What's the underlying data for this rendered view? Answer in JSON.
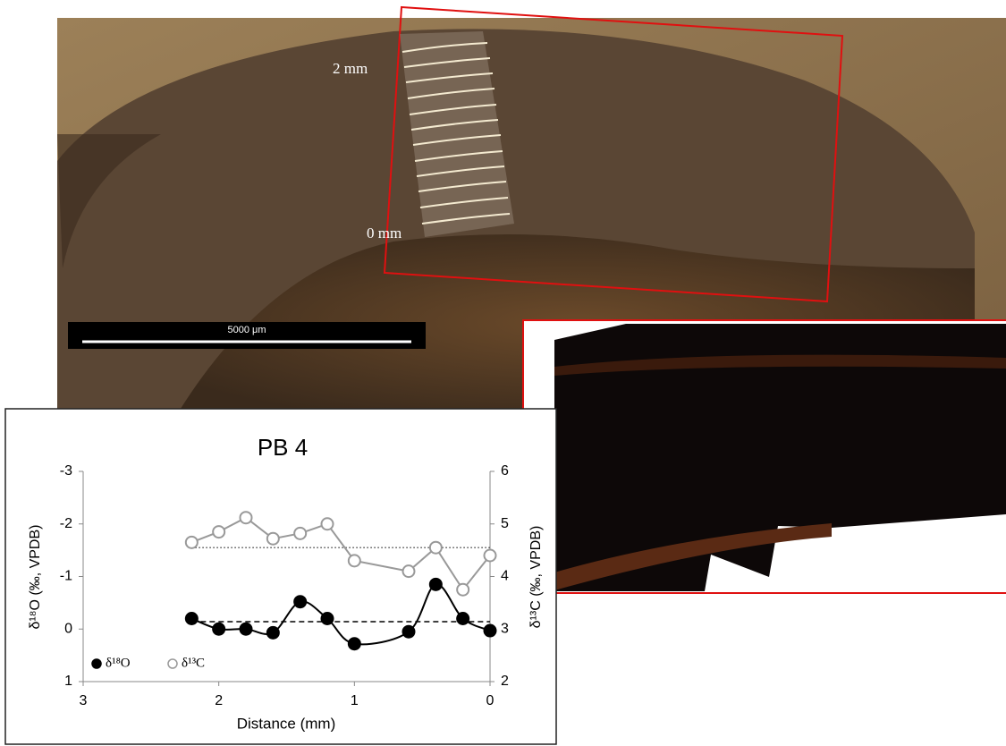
{
  "photo": {
    "labels": [
      "2 mm",
      "0 mm"
    ],
    "scale_bar": "5000 μm"
  },
  "chart_data": {
    "type": "line",
    "title": "PB 4",
    "x_label": "Distance (mm)",
    "y_label": "δ¹⁸O (‰, VPDB)",
    "y2_label": "δ¹³C (‰, VPDB)",
    "x": [
      2.2,
      2.0,
      1.8,
      1.6,
      1.4,
      1.2,
      1.0,
      0.6,
      0.4,
      0.2,
      0.0
    ],
    "series": [
      {
        "name": "δ¹⁸O",
        "color": "#000000",
        "axis": "y",
        "marker": "filled",
        "smooth": true,
        "values": [
          -0.2,
          0.0,
          0.0,
          0.07,
          -0.52,
          -0.2,
          0.28,
          0.05,
          -0.85,
          -0.2,
          0.03
        ]
      },
      {
        "name": "δ¹³C",
        "color": "#999999",
        "axis": "y2",
        "marker": "open",
        "smooth": false,
        "values": [
          4.65,
          4.85,
          5.12,
          4.72,
          4.82,
          5.0,
          4.3,
          4.1,
          4.55,
          3.75,
          4.4
        ]
      }
    ],
    "mean_lines": [
      {
        "axis": "y",
        "value": -0.14,
        "style": "dashed",
        "color": "#000000"
      },
      {
        "axis": "y2",
        "value": 4.55,
        "style": "dotted",
        "color": "#555555"
      }
    ],
    "xlim": [
      3,
      0
    ],
    "xticks": [
      3,
      2,
      1,
      0
    ],
    "ylim": [
      1,
      -3
    ],
    "yticks": [
      1,
      0,
      -1,
      -2,
      -3
    ],
    "y2lim": [
      2,
      6
    ],
    "y2ticks": [
      2,
      3,
      4,
      5,
      6
    ],
    "legend": "lower left"
  }
}
